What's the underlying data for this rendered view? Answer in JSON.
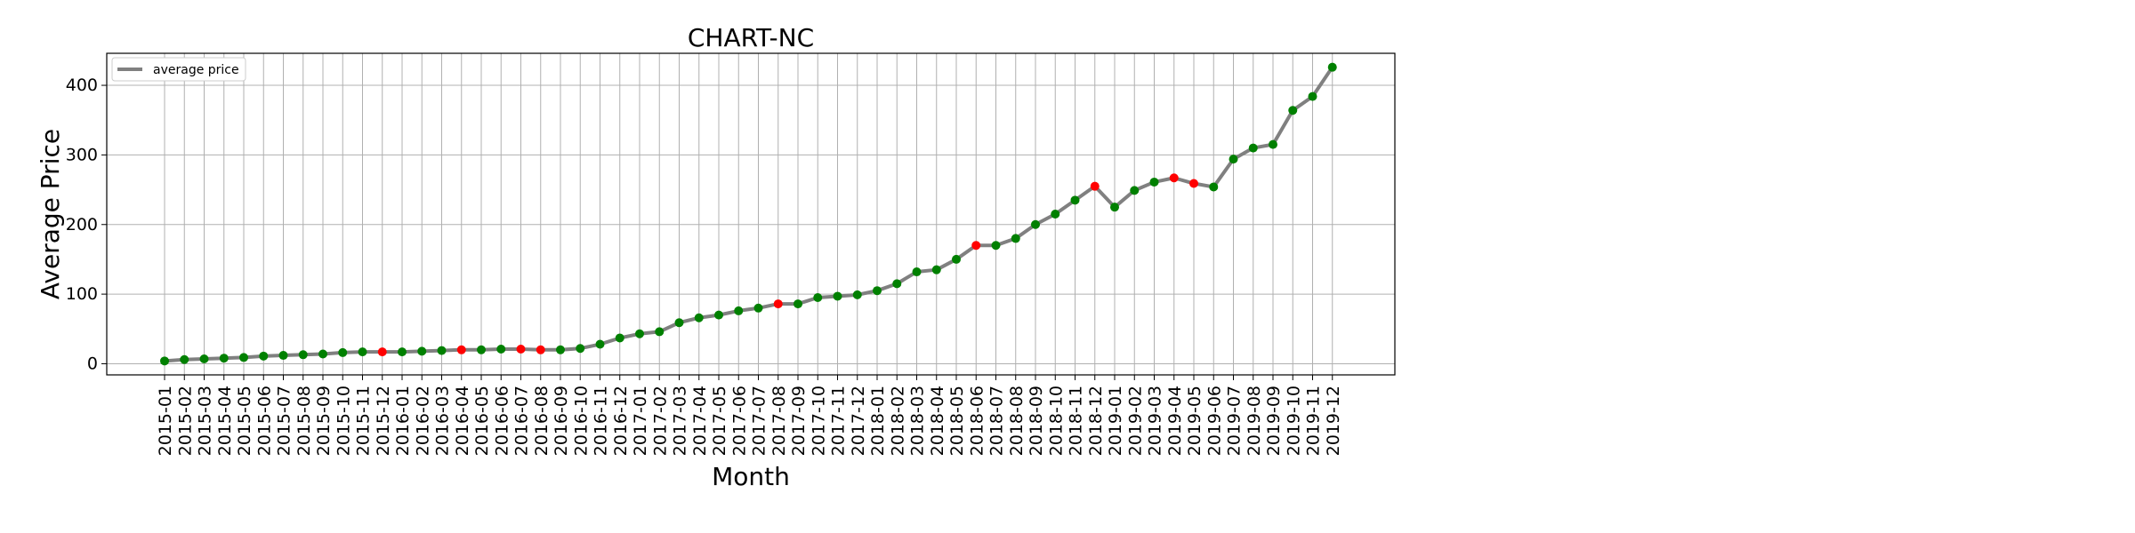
{
  "chart_data": {
    "type": "line",
    "title": "CHART-NC",
    "xlabel": "Month",
    "ylabel": "Average Price",
    "ylim": [
      -16,
      446
    ],
    "yticks": [
      0,
      100,
      200,
      300,
      400
    ],
    "grid": true,
    "legend_position": "top-left",
    "colors": {
      "line": "#808080",
      "up": "#008000",
      "down": "#ff0000",
      "grid": "#b0b0b0"
    },
    "x": [
      "2015-01",
      "2015-02",
      "2015-03",
      "2015-04",
      "2015-05",
      "2015-06",
      "2015-07",
      "2015-08",
      "2015-09",
      "2015-10",
      "2015-11",
      "2015-12",
      "2016-01",
      "2016-02",
      "2016-03",
      "2016-04",
      "2016-05",
      "2016-06",
      "2016-07",
      "2016-08",
      "2016-09",
      "2016-10",
      "2016-11",
      "2016-12",
      "2017-01",
      "2017-02",
      "2017-03",
      "2017-04",
      "2017-05",
      "2017-06",
      "2017-07",
      "2017-08",
      "2017-09",
      "2017-10",
      "2017-11",
      "2017-12",
      "2018-01",
      "2018-02",
      "2018-03",
      "2018-04",
      "2018-05",
      "2018-06",
      "2018-07",
      "2018-08",
      "2018-09",
      "2018-10",
      "2018-11",
      "2018-12",
      "2019-01",
      "2019-02",
      "2019-03",
      "2019-04",
      "2019-05",
      "2019-06",
      "2019-07",
      "2019-08",
      "2019-09",
      "2019-10",
      "2019-11",
      "2019-12"
    ],
    "series": [
      {
        "name": "average price",
        "values": [
          4,
          6,
          7,
          8,
          9,
          11,
          12,
          13,
          14,
          16,
          17,
          17,
          17,
          18,
          19,
          20,
          20,
          21,
          21,
          20,
          20,
          22,
          28,
          37,
          43,
          46,
          59,
          66,
          70,
          76,
          80,
          86,
          86,
          95,
          97,
          99,
          105,
          115,
          132,
          135,
          150,
          170,
          170,
          180,
          200,
          215,
          235,
          255,
          225,
          249,
          261,
          267,
          259,
          254,
          294,
          310,
          315,
          364,
          384,
          426
        ],
        "point_colors": [
          "green",
          "green",
          "green",
          "green",
          "green",
          "green",
          "green",
          "green",
          "green",
          "green",
          "green",
          "red",
          "green",
          "green",
          "green",
          "red",
          "green",
          "green",
          "red",
          "red",
          "green",
          "green",
          "green",
          "green",
          "green",
          "green",
          "green",
          "green",
          "green",
          "green",
          "green",
          "red",
          "green",
          "green",
          "green",
          "green",
          "green",
          "green",
          "green",
          "green",
          "green",
          "red",
          "green",
          "green",
          "green",
          "green",
          "green",
          "red",
          "green",
          "green",
          "green",
          "red",
          "red",
          "green",
          "green",
          "green",
          "green",
          "green",
          "green",
          "green"
        ]
      }
    ]
  }
}
